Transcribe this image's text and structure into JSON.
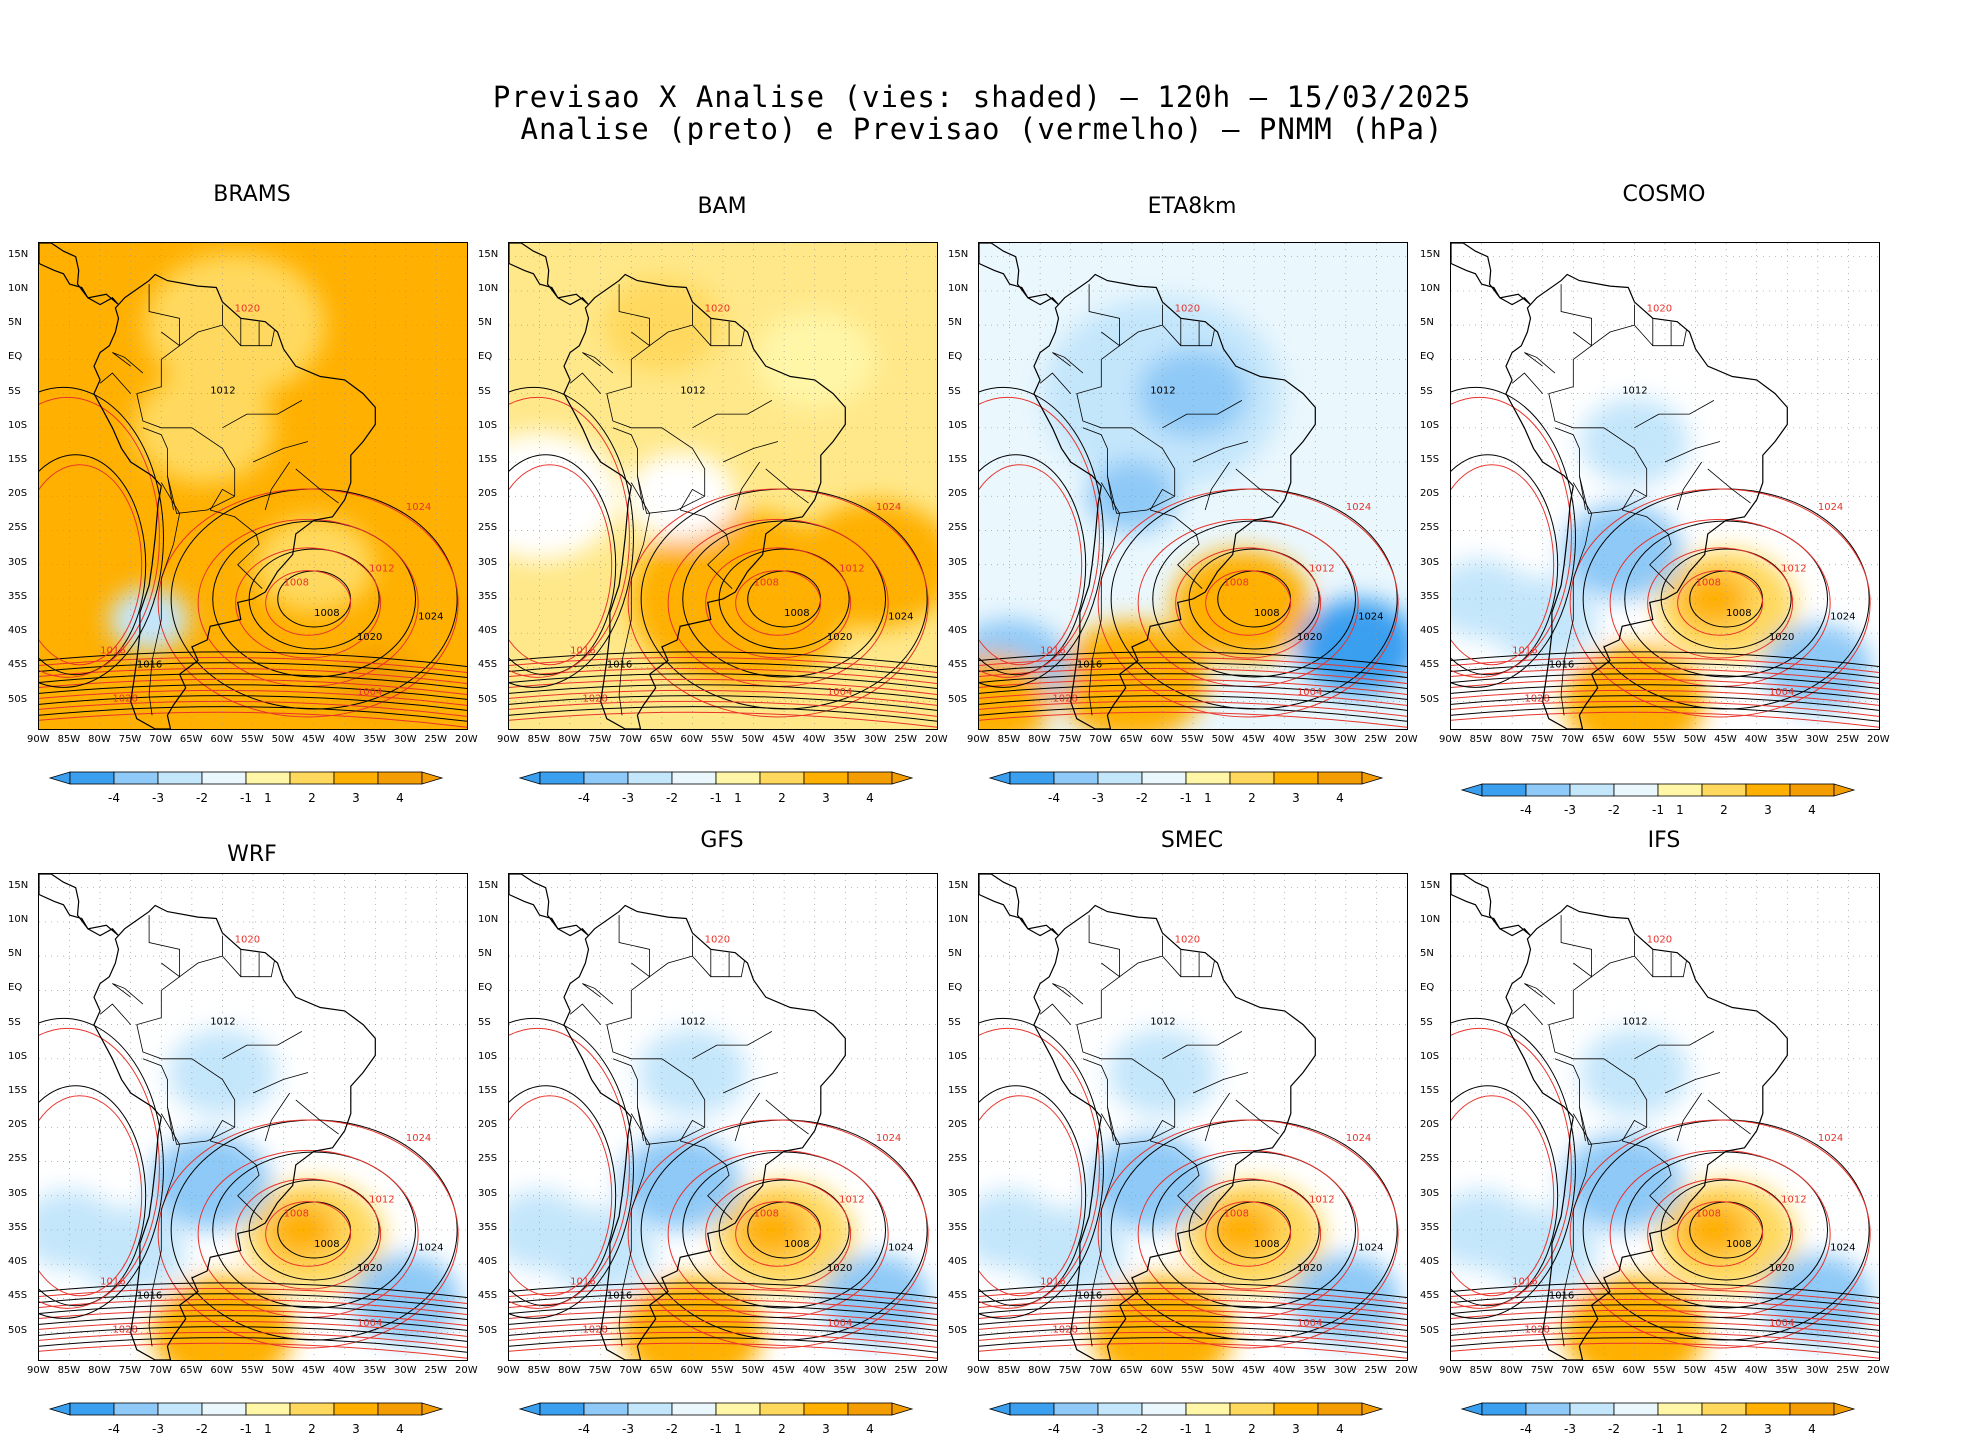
{
  "title": {
    "line1": "Previsao X Analise (vies: shaded) – 120h – 15/03/2025",
    "line2": "Analise (preto) e Previsao (vermelho) – PNMM (hPa)"
  },
  "panels": [
    {
      "name": "BRAMS",
      "bias": "warm-strong"
    },
    {
      "name": "BAM",
      "bias": "warm"
    },
    {
      "name": "ETA8km",
      "bias": "cold"
    },
    {
      "name": "COSMO",
      "bias": "mixed"
    },
    {
      "name": "WRF",
      "bias": "mixed"
    },
    {
      "name": "GFS",
      "bias": "mixed"
    },
    {
      "name": "SMEC",
      "bias": "mixed"
    },
    {
      "name": "IFS",
      "bias": "mixed"
    }
  ],
  "lat_labels": [
    "15N",
    "10N",
    "5N",
    "EQ",
    "5S",
    "10S",
    "15S",
    "20S",
    "25S",
    "30S",
    "35S",
    "40S",
    "45S",
    "50S"
  ],
  "lon_labels": [
    "90W",
    "85W",
    "80W",
    "75W",
    "70W",
    "65W",
    "60W",
    "55W",
    "50W",
    "45W",
    "40W",
    "35W",
    "30W",
    "25W",
    "20W"
  ],
  "colorbar": {
    "labels": [
      "-4",
      "-3",
      "-2",
      "-1",
      "1",
      "2",
      "3",
      "4"
    ],
    "colors": [
      "#3b9ff0",
      "#8ec9f7",
      "#c4e6fb",
      "#eaf7fd",
      "#ffffff",
      "#fff6a8",
      "#ffd95e",
      "#ffb000",
      "#f39d00"
    ]
  },
  "isobar_labels": {
    "analysis": [
      "1008",
      "1012",
      "1016",
      "1020",
      "1024"
    ],
    "forecast": [
      "1004",
      "1008",
      "1012",
      "1016",
      "1020",
      "1024",
      "1028"
    ]
  },
  "colors": {
    "analysis": "#000000",
    "forecast": "#e8332b"
  }
}
